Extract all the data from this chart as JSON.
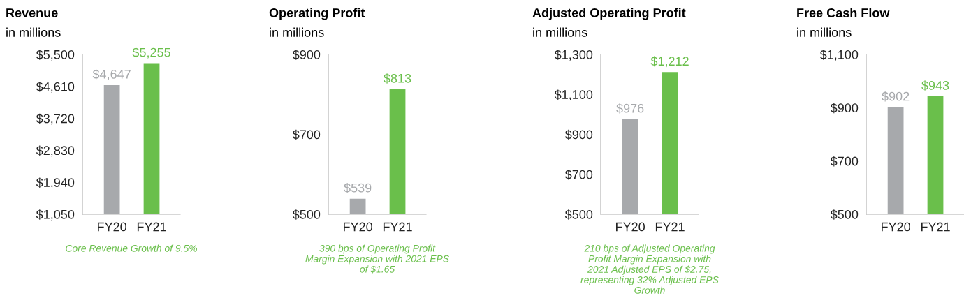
{
  "chart_data": [
    {
      "type": "bar",
      "title": "Revenue",
      "subtitle": "in millions",
      "categories": [
        "FY20",
        "FY21"
      ],
      "values": [
        4647,
        5255
      ],
      "colors": [
        "#a7a9ac",
        "#6abf4b"
      ],
      "value_labels": [
        "$4,647",
        "$5,255"
      ],
      "ylim": [
        1050,
        5500
      ],
      "yticks": [
        {
          "value": 1050,
          "label": "$1,050"
        },
        {
          "value": 1940,
          "label": "$1,940"
        },
        {
          "value": 2830,
          "label": "$2,830"
        },
        {
          "value": 3720,
          "label": "$3,720"
        },
        {
          "value": 4610,
          "label": "$4,610"
        },
        {
          "value": 5500,
          "label": "$5,500"
        }
      ],
      "annotations": [
        "Core Revenue Growth of 9.5%"
      ]
    },
    {
      "type": "bar",
      "title": "Operating Profit",
      "subtitle": "in millions",
      "categories": [
        "FY20",
        "FY21"
      ],
      "values": [
        539,
        813
      ],
      "colors": [
        "#a7a9ac",
        "#6abf4b"
      ],
      "value_labels": [
        "$539",
        "$813"
      ],
      "ylim": [
        500,
        900
      ],
      "yticks": [
        {
          "value": 500,
          "label": "$500"
        },
        {
          "value": 700,
          "label": "$700"
        },
        {
          "value": 900,
          "label": "$900"
        }
      ],
      "annotations": [
        "390 bps of Operating Profit\nMargin Expansion with 2021 EPS\nof $1.65"
      ]
    },
    {
      "type": "bar",
      "title": "Adjusted Operating Profit",
      "subtitle": "in millions",
      "categories": [
        "FY20",
        "FY21"
      ],
      "values": [
        976,
        1212
      ],
      "colors": [
        "#a7a9ac",
        "#6abf4b"
      ],
      "value_labels": [
        "$976",
        "$1,212"
      ],
      "ylim": [
        500,
        1300
      ],
      "yticks": [
        {
          "value": 500,
          "label": "$500"
        },
        {
          "value": 700,
          "label": "$700"
        },
        {
          "value": 900,
          "label": "$900"
        },
        {
          "value": 1100,
          "label": "$1,100"
        },
        {
          "value": 1300,
          "label": "$1,300"
        }
      ],
      "annotations": [
        "210 bps of Adjusted Operating\nProfit Margin Expansion with\n2021 Adjusted EPS of $2.75,\nrepresenting 32% Adjusted EPS\nGrowth"
      ]
    },
    {
      "type": "bar",
      "title": "Free Cash Flow",
      "subtitle": "in millions",
      "categories": [
        "FY20",
        "FY21"
      ],
      "values": [
        902,
        943
      ],
      "colors": [
        "#a7a9ac",
        "#6abf4b"
      ],
      "value_labels": [
        "$902",
        "$943"
      ],
      "ylim": [
        500,
        1100
      ],
      "yticks": [
        {
          "value": 500,
          "label": "$500"
        },
        {
          "value": 700,
          "label": "$700"
        },
        {
          "value": 900,
          "label": "$900"
        },
        {
          "value": 1100,
          "label": "$1,100"
        }
      ]
    }
  ]
}
